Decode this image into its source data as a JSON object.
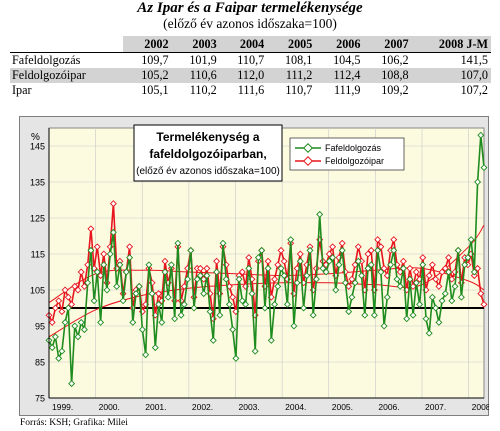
{
  "header": {
    "title": "Az Ipar és a Faipar termelékenysége",
    "subtitle": "(előző év azonos időszaka=100)"
  },
  "table": {
    "columns": [
      "2002",
      "2003",
      "2004",
      "2005",
      "2006",
      "2007",
      "2008 J-M"
    ],
    "rows": [
      {
        "label": "Fafeldolgozás",
        "values": [
          "109,7",
          "101,9",
          "110,7",
          "108,1",
          "104,5",
          "106,2",
          "141,5"
        ]
      },
      {
        "label": "Feldolgozóipar",
        "values": [
          "105,2",
          "110,6",
          "112,0",
          "111,2",
          "112,4",
          "108,8",
          "107,0"
        ]
      },
      {
        "label": "Ipar",
        "values": [
          "105,1",
          "110,2",
          "111,6",
          "110,7",
          "111,9",
          "109,2",
          "107,2"
        ]
      }
    ]
  },
  "chart_data": {
    "type": "line",
    "title_lines": [
      "Termelékenység a",
      "fafeldolgozóiparban,",
      "(előző év azonos időszaka=100)"
    ],
    "ylabel": "%",
    "ylim": [
      75,
      150
    ],
    "yticks": [
      75,
      85,
      95,
      105,
      115,
      125,
      135,
      145
    ],
    "reference_line": 100,
    "xlim": [
      1999.0,
      2008.33
    ],
    "xticks": [
      "1999.",
      "2000.",
      "2001.",
      "2002.",
      "2003.",
      "2004.",
      "2005.",
      "2006.",
      "2007.",
      "2008."
    ],
    "grid": true,
    "legend_position": "top-right",
    "colors": {
      "fafeldolgozas": "#1e8c1e",
      "feldolgozoipar": "#e8141e",
      "plot_background": "#fcfbe0",
      "frame_background": "#e5e5e5",
      "trend": "#e8141e"
    },
    "series": [
      {
        "name": "Fafeldolgozás",
        "color": "#1e8c1e",
        "values": [
          91,
          89,
          92,
          86,
          88,
          96,
          100,
          79,
          95,
          92,
          96,
          94,
          107,
          116,
          102,
          110,
          96,
          112,
          105,
          115,
          121,
          106,
          112,
          102,
          110,
          114,
          96,
          104,
          106,
          94,
          87,
          112,
          104,
          89,
          101,
          96,
          110,
          103,
          112,
          97,
          118,
          98,
          101,
          108,
          116,
          100,
          108,
          109,
          104,
          109,
          99,
          91,
          110,
          98,
          118,
          108,
          101,
          94,
          86,
          108,
          102,
          101,
          111,
          104,
          88,
          114,
          116,
          100,
          111,
          91,
          101,
          106,
          111,
          109,
          101,
          119,
          95,
          107,
          113,
          100,
          109,
          116,
          98,
          108,
          126,
          111,
          110,
          113,
          114,
          105,
          112,
          116,
          107,
          99,
          103,
          107,
          113,
          109,
          98,
          111,
          112,
          98,
          116,
          110,
          95,
          103,
          112,
          116,
          108,
          106,
          111,
          97,
          108,
          98,
          107,
          101,
          112,
          97,
          93,
          103,
          100,
          96,
          102,
          104,
          110,
          102,
          106,
          116,
          103,
          112,
          114,
          119,
          110,
          135,
          148,
          139
        ]
      },
      {
        "name": "Feldolgozóipar",
        "color": "#e8141e",
        "values": [
          98,
          96,
          100,
          102,
          99,
          105,
          103,
          101,
          106,
          105,
          110,
          106,
          112,
          122,
          111,
          117,
          109,
          115,
          107,
          117,
          129,
          111,
          113,
          104,
          110,
          117,
          100,
          105,
          106,
          99,
          101,
          111,
          107,
          98,
          104,
          102,
          113,
          107,
          111,
          102,
          117,
          102,
          106,
          111,
          116,
          103,
          111,
          111,
          108,
          111,
          104,
          97,
          113,
          104,
          117,
          112,
          106,
          103,
          99,
          109,
          110,
          106,
          114,
          108,
          98,
          113,
          116,
          106,
          113,
          103,
          108,
          112,
          116,
          113,
          108,
          118,
          104,
          111,
          115,
          107,
          112,
          117,
          105,
          111,
          119,
          113,
          112,
          115,
          117,
          109,
          114,
          118,
          110,
          106,
          108,
          112,
          117,
          113,
          105,
          115,
          116,
          105,
          119,
          117,
          111,
          109,
          116,
          119,
          112,
          110,
          113,
          105,
          111,
          106,
          110,
          108,
          114,
          105,
          109,
          112,
          108,
          106,
          110,
          111,
          114,
          108,
          110,
          116,
          107,
          114,
          112,
          115,
          109,
          111,
          104,
          101
        ]
      }
    ],
    "trends": [
      {
        "name": "Fafeldolgozás trend",
        "type": "polynomial",
        "x": [
          1999.0,
          2000.0,
          2001.0,
          2002.0,
          2003.0,
          2004.0,
          2005.0,
          2006.0,
          2007.0,
          2008.0,
          2008.33
        ],
        "values": [
          92,
          99.5,
          103.5,
          105.5,
          106.5,
          107,
          107,
          106.5,
          106.5,
          117,
          123
        ]
      },
      {
        "name": "Feldolgozóipar trend",
        "type": "polynomial",
        "x": [
          1999.0,
          2000.0,
          2001.0,
          2002.0,
          2003.0,
          2004.0,
          2005.0,
          2006.0,
          2007.0,
          2008.0,
          2008.33
        ],
        "values": [
          101.5,
          109.5,
          110.5,
          110,
          109.5,
          109,
          109.5,
          110.5,
          111,
          107.5,
          105
        ]
      }
    ]
  },
  "source": "Forrás: KSH; Grafika: Milei"
}
